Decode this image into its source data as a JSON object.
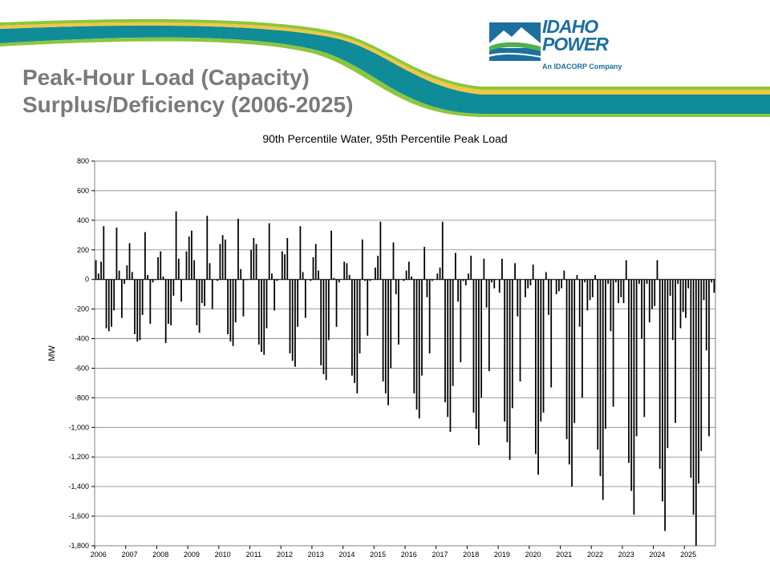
{
  "slide": {
    "title_line1": "Peak-Hour Load (Capacity)",
    "title_line2": "Surplus/Deficiency (2006-2025)"
  },
  "logo": {
    "line1": "IDAHO",
    "line2": "POWER",
    "tagline": "An IDACORP Company",
    "colors": {
      "blue": "#1d6fa0",
      "green": "#4caf50"
    }
  },
  "colors": {
    "teal": "#0f8c98",
    "yellow": "#f2c744",
    "green": "#8cc63f",
    "bar": "#000000",
    "title_gray": "#7a7a7a"
  },
  "chart_data": {
    "type": "bar",
    "title": "90th Percentile Water, 95th Percentile Peak Load",
    "ylabel": "MW",
    "ylim": [
      -1800,
      800
    ],
    "yticks": [
      800,
      600,
      400,
      200,
      0,
      -200,
      -400,
      -600,
      -800,
      -1000,
      -1200,
      -1400,
      -1600,
      -1800
    ],
    "ytick_labels": [
      "800",
      "600",
      "400",
      "200",
      "0",
      "-200",
      "-400",
      "-600",
      "-800",
      "-1,000",
      "-1,200",
      "-1,400",
      "-1,600",
      "-1,800"
    ],
    "x_labels": [
      "2006",
      "2007",
      "2008",
      "2009",
      "2010",
      "2011",
      "2012",
      "2013",
      "2014",
      "2015",
      "2016",
      "2017",
      "2018",
      "2019",
      "2020",
      "2021",
      "2022",
      "2023",
      "2024",
      "2025"
    ],
    "grid": true,
    "periods_per_year": 12,
    "series": [
      {
        "values": [
          130,
          40,
          120,
          360,
          -330,
          -350,
          -320,
          -210,
          350,
          60,
          -260,
          -30,
          95,
          245,
          50,
          -370,
          -420,
          -410,
          -240,
          320,
          30,
          -300,
          -20,
          -5,
          150,
          190,
          20,
          -430,
          -300,
          -310,
          -110,
          460,
          140,
          -150,
          0,
          190,
          290,
          330,
          130,
          -310,
          -360,
          -160,
          -180,
          430,
          110,
          -200,
          0,
          -10,
          240,
          300,
          270,
          -370,
          -420,
          -450,
          -290,
          410,
          70,
          -250,
          -5,
          0,
          200,
          280,
          240,
          -440,
          -490,
          -510,
          -330,
          380,
          40,
          -210,
          -10,
          0,
          190,
          170,
          280,
          -500,
          -550,
          -590,
          -320,
          360,
          50,
          -260,
          0,
          -10,
          150,
          240,
          60,
          -580,
          -640,
          -680,
          -410,
          330,
          10,
          -320,
          -20,
          0,
          120,
          110,
          30,
          -650,
          -700,
          -770,
          -500,
          270,
          -10,
          -380,
          -10,
          0,
          80,
          160,
          390,
          -690,
          -770,
          -850,
          -600,
          250,
          -100,
          -440,
          0,
          -10,
          60,
          120,
          20,
          -770,
          -880,
          -940,
          -650,
          220,
          -120,
          -500,
          -10,
          0,
          40,
          80,
          390,
          -830,
          -930,
          -1030,
          -720,
          180,
          -150,
          -560,
          -10,
          -40,
          40,
          160,
          -900,
          -1010,
          -1120,
          -800,
          140,
          -190,
          -620,
          -20,
          -60,
          0,
          -90,
          140,
          -960,
          -1100,
          -1220,
          -870,
          110,
          -250,
          -690,
          0,
          -120,
          -60,
          -40,
          100,
          -1180,
          -1320,
          -960,
          -900,
          50,
          -240,
          -730,
          0,
          -100,
          -80,
          -60,
          60,
          -1080,
          -1250,
          -1400,
          -970,
          30,
          -320,
          -800,
          -20,
          -210,
          -140,
          -120,
          30,
          -1150,
          -1330,
          -1490,
          -1010,
          -30,
          -350,
          -860,
          -20,
          -160,
          -120,
          -160,
          130,
          -1240,
          -1430,
          -1590,
          -1060,
          -30,
          -400,
          -930,
          -30,
          -290,
          -200,
          -180,
          130,
          -1280,
          -1500,
          -1700,
          -1140,
          -110,
          -410,
          -970,
          -30,
          -330,
          -220,
          -260,
          -60,
          -1340,
          -1590,
          -1800,
          -1380,
          -1160,
          -140,
          -480,
          -1060,
          -20,
          -90
        ]
      }
    ]
  }
}
